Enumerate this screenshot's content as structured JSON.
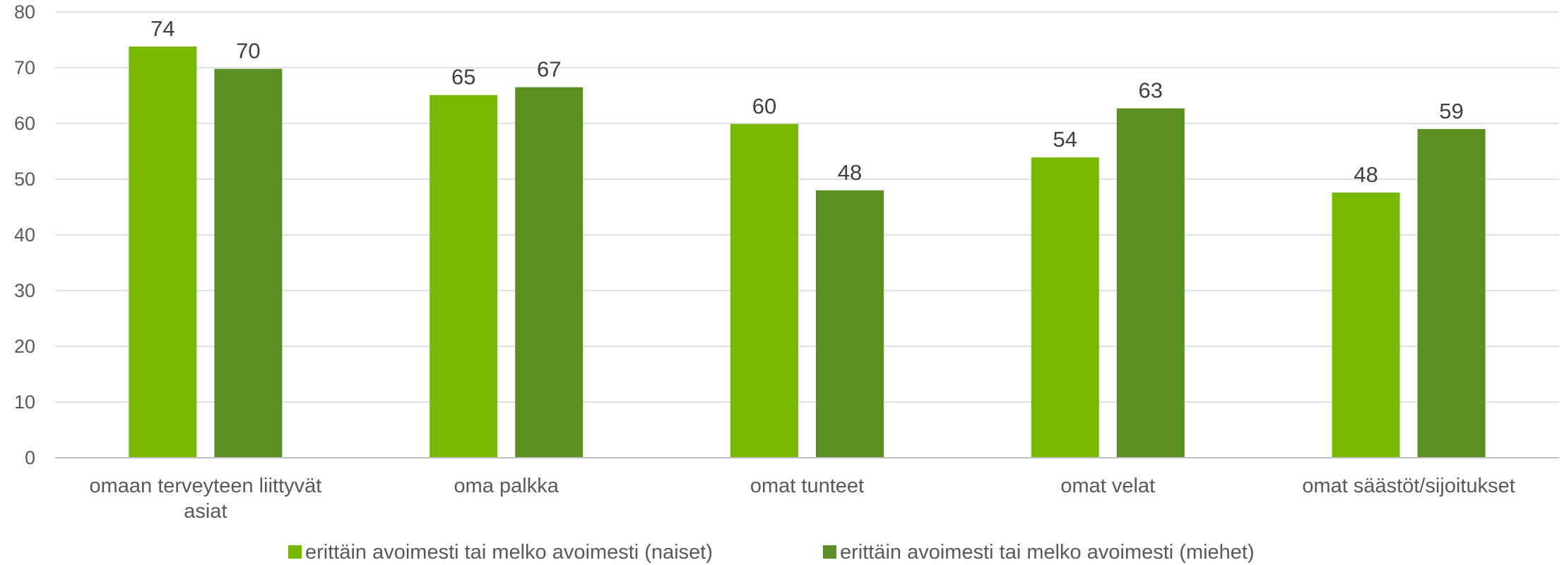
{
  "chart_data": {
    "type": "bar",
    "title": "",
    "xlabel": "",
    "ylabel": "",
    "ylim": [
      0,
      80
    ],
    "yticks": [
      0,
      10,
      20,
      30,
      40,
      50,
      60,
      70,
      80
    ],
    "grid": true,
    "legend_position": "bottom",
    "categories": [
      [
        "omaan terveyteen liittyvät",
        "asiat"
      ],
      [
        "oma palkka"
      ],
      [
        "omat tunteet"
      ],
      [
        "omat velat"
      ],
      [
        "omat säästöt/sijoitukset"
      ]
    ],
    "series": [
      {
        "name": "erittäin avoimesti tai melko avoimesti (naiset)",
        "color": "#77b800",
        "values": [
          73.8,
          65.1,
          59.9,
          53.9,
          47.6
        ],
        "labels": [
          "74",
          "65",
          "60",
          "54",
          "48"
        ]
      },
      {
        "name": "erittäin avoimesti tai melko avoimesti (miehet)",
        "color": "#5a8f22",
        "values": [
          69.8,
          66.5,
          48.0,
          62.7,
          59.0
        ],
        "labels": [
          "70",
          "67",
          "48",
          "63",
          "59"
        ]
      }
    ]
  }
}
